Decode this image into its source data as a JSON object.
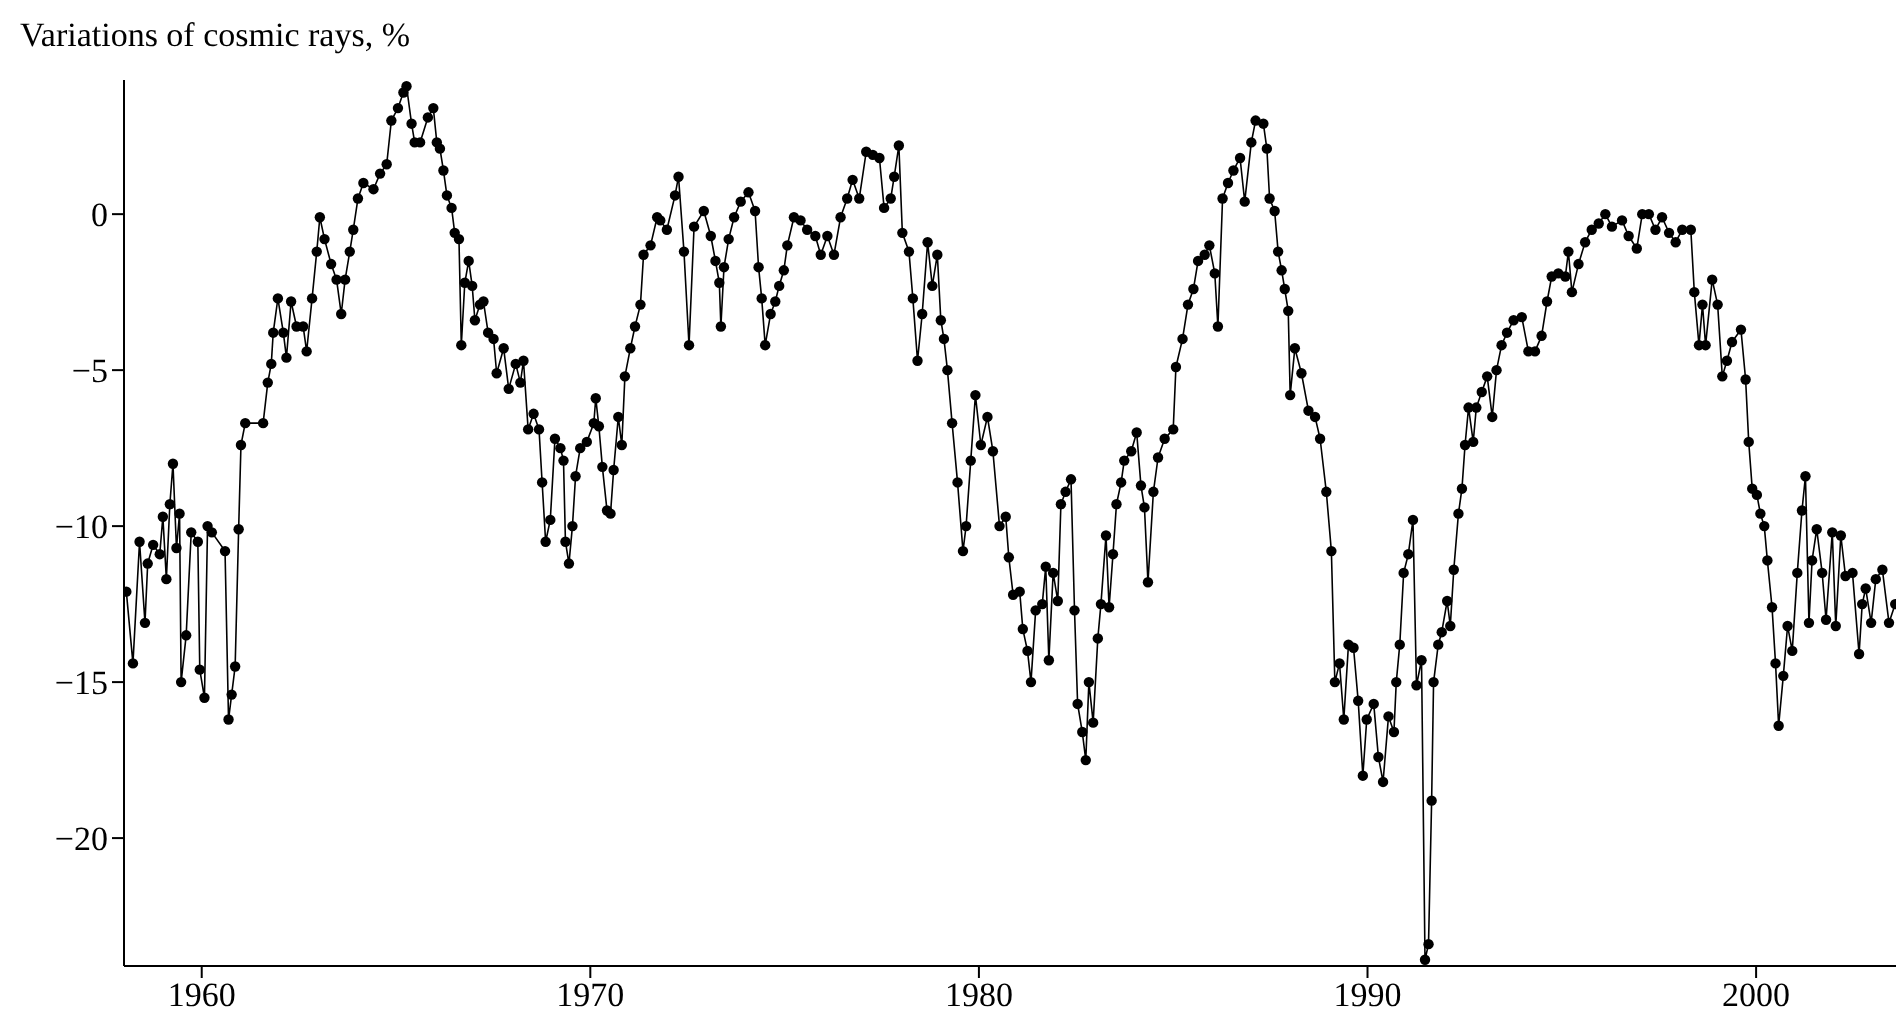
{
  "chart_data": {
    "type": "line",
    "ylabel": "Variations of cosmic rays, %",
    "xlim": [
      1958,
      2003.6
    ],
    "ylim": [
      -24.1,
      4.3
    ],
    "xticks": [
      1960,
      1970,
      1980,
      1990,
      2000
    ],
    "yticks": [
      -20,
      -15,
      -10,
      -5,
      0
    ],
    "marker": "circle",
    "line_style": "solid",
    "series": [
      {
        "color": "#000000",
        "x": [
          1958.06,
          1958.23,
          1958.4,
          1958.54,
          1958.61,
          1958.75,
          1958.92,
          1959.0,
          1959.09,
          1959.18,
          1959.26,
          1959.35,
          1959.43,
          1959.47,
          1959.6,
          1959.73,
          1959.9,
          1959.95,
          1960.07,
          1960.15,
          1960.26,
          1960.6,
          1960.69,
          1960.77,
          1960.86,
          1960.95,
          1961.01,
          1961.12,
          1961.58,
          1961.7,
          1961.79,
          1961.84,
          1961.96,
          1962.1,
          1962.18,
          1962.3,
          1962.44,
          1962.61,
          1962.7,
          1962.84,
          1962.96,
          1963.04,
          1963.16,
          1963.33,
          1963.47,
          1963.59,
          1963.69,
          1963.81,
          1963.9,
          1964.02,
          1964.16,
          1964.42,
          1964.59,
          1964.76,
          1964.88,
          1965.05,
          1965.19,
          1965.27,
          1965.4,
          1965.48,
          1965.62,
          1965.82,
          1965.96,
          1966.05,
          1966.13,
          1966.22,
          1966.31,
          1966.43,
          1966.51,
          1966.62,
          1966.68,
          1966.77,
          1966.87,
          1966.96,
          1967.03,
          1967.16,
          1967.25,
          1967.37,
          1967.51,
          1967.59,
          1967.77,
          1967.9,
          1968.08,
          1968.2,
          1968.28,
          1968.4,
          1968.54,
          1968.68,
          1968.76,
          1968.85,
          1968.97,
          1969.09,
          1969.23,
          1969.31,
          1969.36,
          1969.45,
          1969.54,
          1969.62,
          1969.74,
          1969.91,
          1970.09,
          1970.14,
          1970.22,
          1970.31,
          1970.43,
          1970.52,
          1970.6,
          1970.72,
          1970.81,
          1970.89,
          1971.03,
          1971.15,
          1971.29,
          1971.37,
          1971.55,
          1971.72,
          1971.8,
          1971.97,
          1972.18,
          1972.27,
          1972.41,
          1972.54,
          1972.67,
          1972.92,
          1973.1,
          1973.22,
          1973.32,
          1973.36,
          1973.44,
          1973.56,
          1973.7,
          1973.87,
          1974.07,
          1974.24,
          1974.33,
          1974.41,
          1974.5,
          1974.64,
          1974.76,
          1974.86,
          1974.98,
          1975.07,
          1975.24,
          1975.41,
          1975.58,
          1975.79,
          1975.93,
          1976.1,
          1976.27,
          1976.44,
          1976.61,
          1976.75,
          1976.92,
          1977.1,
          1977.27,
          1977.44,
          1977.56,
          1977.73,
          1977.82,
          1977.94,
          1978.03,
          1978.2,
          1978.3,
          1978.42,
          1978.54,
          1978.68,
          1978.8,
          1978.93,
          1979.02,
          1979.1,
          1979.19,
          1979.31,
          1979.45,
          1979.59,
          1979.67,
          1979.79,
          1979.91,
          1980.05,
          1980.22,
          1980.36,
          1980.53,
          1980.69,
          1980.77,
          1980.88,
          1981.05,
          1981.13,
          1981.25,
          1981.34,
          1981.46,
          1981.63,
          1981.72,
          1981.8,
          1981.91,
          1982.03,
          1982.11,
          1982.23,
          1982.37,
          1982.46,
          1982.54,
          1982.66,
          1982.75,
          1982.83,
          1982.94,
          1983.06,
          1983.14,
          1983.27,
          1983.35,
          1983.45,
          1983.54,
          1983.66,
          1983.74,
          1983.92,
          1984.06,
          1984.17,
          1984.26,
          1984.35,
          1984.49,
          1984.61,
          1984.78,
          1985.0,
          1985.07,
          1985.24,
          1985.38,
          1985.52,
          1985.64,
          1985.81,
          1985.93,
          1986.07,
          1986.15,
          1986.27,
          1986.41,
          1986.55,
          1986.72,
          1986.84,
          1987.01,
          1987.12,
          1987.32,
          1987.41,
          1987.48,
          1987.61,
          1987.7,
          1987.79,
          1987.87,
          1987.96,
          1988.01,
          1988.13,
          1988.3,
          1988.48,
          1988.65,
          1988.78,
          1988.94,
          1989.07,
          1989.16,
          1989.28,
          1989.39,
          1989.51,
          1989.64,
          1989.76,
          1989.88,
          1989.98,
          1990.16,
          1990.28,
          1990.4,
          1990.54,
          1990.68,
          1990.74,
          1990.83,
          1990.93,
          1991.05,
          1991.17,
          1991.26,
          1991.39,
          1991.48,
          1991.57,
          1991.65,
          1991.7,
          1991.82,
          1991.91,
          1992.05,
          1992.13,
          1992.22,
          1992.34,
          1992.43,
          1992.51,
          1992.6,
          1992.72,
          1992.8,
          1992.94,
          1993.08,
          1993.21,
          1993.32,
          1993.45,
          1993.59,
          1993.76,
          1993.97,
          1994.14,
          1994.31,
          1994.48,
          1994.62,
          1994.74,
          1994.91,
          1995.09,
          1995.17,
          1995.26,
          1995.43,
          1995.6,
          1995.77,
          1995.95,
          1996.12,
          1996.29,
          1996.55,
          1996.72,
          1996.93,
          1997.07,
          1997.24,
          1997.41,
          1997.58,
          1997.76,
          1997.93,
          1998.1,
          1998.32,
          1998.41,
          1998.53,
          1998.62,
          1998.7,
          1998.87,
          1999.01,
          1999.13,
          1999.25,
          1999.38,
          1999.61,
          1999.73,
          1999.81,
          1999.9,
          2000.02,
          2000.11,
          2000.21,
          2000.29,
          2000.41,
          2000.5,
          2000.58,
          2000.7,
          2000.81,
          2000.93,
          2001.06,
          2001.18,
          2001.27,
          2001.36,
          2001.44,
          2001.56,
          2001.7,
          2001.8,
          2001.96,
          2002.05,
          2002.18,
          2002.3,
          2002.48,
          2002.65,
          2002.73,
          2002.82,
          2002.96,
          2003.08,
          2003.25,
          2003.42,
          2003.58
        ],
        "values": [
          -12.1,
          -14.4,
          -10.5,
          -13.1,
          -11.2,
          -10.6,
          -10.9,
          -9.7,
          -11.7,
          -9.3,
          -8.0,
          -10.7,
          -9.6,
          -15.0,
          -13.5,
          -10.2,
          -10.5,
          -14.6,
          -15.5,
          -10.0,
          -10.2,
          -10.8,
          -16.2,
          -15.4,
          -14.5,
          -10.1,
          -7.4,
          -6.7,
          -6.7,
          -5.4,
          -4.8,
          -3.8,
          -2.7,
          -3.8,
          -4.6,
          -2.8,
          -3.6,
          -3.6,
          -4.4,
          -2.7,
          -1.2,
          -0.1,
          -0.8,
          -1.6,
          -2.1,
          -3.2,
          -2.1,
          -1.2,
          -0.5,
          0.5,
          1.0,
          0.8,
          1.3,
          1.6,
          3.0,
          3.4,
          3.9,
          4.1,
          2.9,
          2.3,
          2.3,
          3.1,
          3.4,
          2.3,
          2.1,
          1.4,
          0.6,
          0.2,
          -0.6,
          -0.8,
          -4.2,
          -2.2,
          -1.5,
          -2.3,
          -3.4,
          -2.9,
          -2.8,
          -3.8,
          -4.0,
          -5.1,
          -4.3,
          -5.6,
          -4.8,
          -5.4,
          -4.7,
          -6.9,
          -6.4,
          -6.9,
          -8.6,
          -10.5,
          -9.8,
          -7.2,
          -7.5,
          -7.9,
          -10.5,
          -11.2,
          -10.0,
          -8.4,
          -7.5,
          -7.3,
          -6.7,
          -5.9,
          -6.8,
          -8.1,
          -9.5,
          -9.6,
          -8.2,
          -6.5,
          -7.4,
          -5.2,
          -4.3,
          -3.6,
          -2.9,
          -1.3,
          -1.0,
          -0.1,
          -0.2,
          -0.5,
          0.6,
          1.2,
          -1.2,
          -4.2,
          -0.4,
          0.1,
          -0.7,
          -1.5,
          -2.2,
          -3.6,
          -1.7,
          -0.8,
          -0.1,
          0.4,
          0.7,
          0.1,
          -1.7,
          -2.7,
          -4.2,
          -3.2,
          -2.8,
          -2.3,
          -1.8,
          -1.0,
          -0.1,
          -0.2,
          -0.5,
          -0.7,
          -1.3,
          -0.7,
          -1.3,
          -0.1,
          0.5,
          1.1,
          0.5,
          2.0,
          1.9,
          1.8,
          0.2,
          0.5,
          1.2,
          2.2,
          -0.6,
          -1.2,
          -2.7,
          -4.7,
          -3.2,
          -0.9,
          -2.3,
          -1.3,
          -3.4,
          -4.0,
          -5.0,
          -6.7,
          -8.6,
          -10.8,
          -10.0,
          -7.9,
          -5.8,
          -7.4,
          -6.5,
          -7.6,
          -10.0,
          -9.7,
          -11.0,
          -12.2,
          -12.1,
          -13.3,
          -14.0,
          -15.0,
          -12.7,
          -12.5,
          -11.3,
          -14.3,
          -11.5,
          -12.4,
          -9.3,
          -8.9,
          -8.5,
          -12.7,
          -15.7,
          -16.6,
          -17.5,
          -15.0,
          -16.3,
          -13.6,
          -12.5,
          -10.3,
          -12.6,
          -10.9,
          -9.3,
          -8.6,
          -7.9,
          -7.6,
          -7.0,
          -8.7,
          -9.4,
          -11.8,
          -8.9,
          -7.8,
          -7.2,
          -6.9,
          -4.9,
          -4.0,
          -2.9,
          -2.4,
          -1.5,
          -1.3,
          -1.0,
          -1.9,
          -3.6,
          0.5,
          1.0,
          1.4,
          1.8,
          0.4,
          2.3,
          3.0,
          2.9,
          2.1,
          0.5,
          0.1,
          -1.2,
          -1.8,
          -2.4,
          -3.1,
          -5.8,
          -4.3,
          -5.1,
          -6.3,
          -6.5,
          -7.2,
          -8.9,
          -10.8,
          -15.0,
          -14.4,
          -16.2,
          -13.8,
          -13.9,
          -15.6,
          -18.0,
          -16.2,
          -15.7,
          -17.4,
          -18.2,
          -16.1,
          -16.6,
          -15.0,
          -13.8,
          -11.5,
          -10.9,
          -9.8,
          -15.1,
          -14.3,
          -23.9,
          -23.4,
          -18.8,
          -15.0,
          -13.8,
          -13.4,
          -12.4,
          -13.2,
          -11.4,
          -9.6,
          -8.8,
          -7.4,
          -6.2,
          -7.3,
          -6.2,
          -5.7,
          -5.2,
          -6.5,
          -5.0,
          -4.2,
          -3.8,
          -3.4,
          -3.3,
          -4.4,
          -4.4,
          -3.9,
          -2.8,
          -2.0,
          -1.9,
          -2.0,
          -1.2,
          -2.5,
          -1.6,
          -0.9,
          -0.5,
          -0.3,
          0.0,
          -0.4,
          -0.2,
          -0.7,
          -1.1,
          0.0,
          0.0,
          -0.5,
          -0.1,
          -0.6,
          -0.9,
          -0.5,
          -0.5,
          -2.5,
          -4.2,
          -2.9,
          -4.2,
          -2.1,
          -2.9,
          -5.2,
          -4.7,
          -4.1,
          -3.7,
          -5.3,
          -7.3,
          -8.8,
          -9.0,
          -9.6,
          -10.0,
          -11.1,
          -12.6,
          -14.4,
          -16.4,
          -14.8,
          -13.2,
          -14.0,
          -11.5,
          -9.5,
          -8.4,
          -13.1,
          -11.1,
          -10.1,
          -11.5,
          -13.0,
          -10.2,
          -13.2,
          -10.3,
          -11.6,
          -11.5,
          -14.1,
          -12.5,
          -12.0,
          -13.1,
          -11.7,
          -11.4,
          -13.1,
          -12.5
        ]
      }
    ]
  }
}
